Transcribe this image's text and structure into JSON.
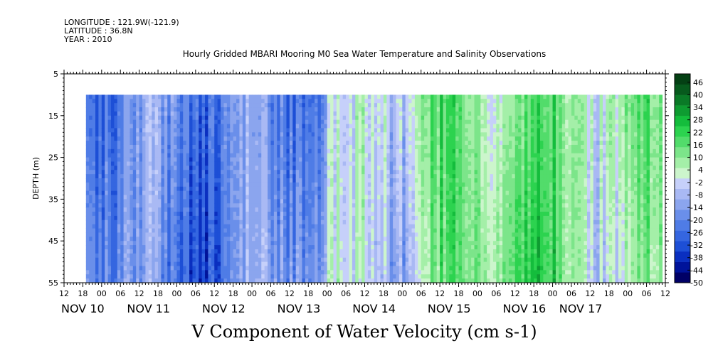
{
  "header": {
    "longitude": "LONGITUDE : 121.9W(-121.9)",
    "latitude": "LATITUDE : 36.8N",
    "year": "YEAR : 2010"
  },
  "chart_data": {
    "type": "heatmap",
    "title": "Hourly Gridded MBARI Mooring M0 Sea Water Temperature and Salinity Observations",
    "xlabel": "V Component of Water Velocity (cm s-1)",
    "ylabel": "DEPTH (m)",
    "ylim": [
      5,
      55
    ],
    "y_inverted": true,
    "y_ticks": [
      5,
      15,
      25,
      35,
      45,
      55
    ],
    "x_range_hours": [
      12,
      204
    ],
    "x_hour_tick_labels": [
      "12",
      "18",
      "00",
      "06",
      "12",
      "18",
      "00",
      "06",
      "12",
      "18",
      "00",
      "06",
      "12",
      "18",
      "00",
      "06",
      "12",
      "18",
      "00",
      "06",
      "12",
      "18",
      "00",
      "06",
      "12",
      "18",
      "00",
      "06",
      "12",
      "18",
      "00",
      "06",
      "12"
    ],
    "date_labels": [
      {
        "text": "NOV 10",
        "hour": 12
      },
      {
        "text": "NOV 11",
        "hour": 33
      },
      {
        "text": "NOV 12",
        "hour": 57
      },
      {
        "text": "NOV 13",
        "hour": 81
      },
      {
        "text": "NOV 14",
        "hour": 105
      },
      {
        "text": "NOV 15",
        "hour": 129
      },
      {
        "text": "NOV 16",
        "hour": 153
      },
      {
        "text": "NOV 17",
        "hour": 171
      }
    ],
    "data_extent": {
      "hour_start": 19,
      "hour_end": 203,
      "depth_top": 10,
      "depth_bottom": 55
    },
    "colorbar": {
      "labels": [
        46,
        40,
        34,
        28,
        22,
        16,
        10,
        4,
        -2,
        -8,
        -14,
        -20,
        -26,
        -32,
        -38,
        -44,
        -50
      ],
      "min": -50,
      "max": 50,
      "colors": [
        "#000066",
        "#00139a",
        "#0a2fc0",
        "#1d4fd6",
        "#3566e0",
        "#4f7ce6",
        "#6a8fea",
        "#8ba5ee",
        "#a9b9f4",
        "#c6d0fa",
        "#ccf5cc",
        "#a4efa8",
        "#7ce58a",
        "#52dc6b",
        "#2cd34f",
        "#14bd3c",
        "#0e9c31",
        "#0a7a27",
        "#075a1d",
        "#044014"
      ]
    },
    "field_description": {
      "mean_v_by_day": [
        {
          "hour_start": 19,
          "hour_end": 96,
          "mean_v": -18
        },
        {
          "hour_start": 96,
          "hour_end": 105,
          "mean_v": -6
        },
        {
          "hour_start": 105,
          "hour_end": 125,
          "mean_v": 3
        },
        {
          "hour_start": 125,
          "hour_end": 150,
          "mean_v": 12
        },
        {
          "hour_start": 150,
          "hour_end": 175,
          "mean_v": 11
        },
        {
          "hour_start": 175,
          "hour_end": 203,
          "mean_v": 8
        }
      ]
    }
  }
}
